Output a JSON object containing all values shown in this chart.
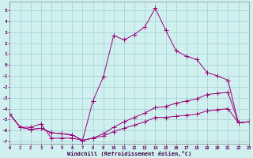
{
  "xlabel": "Windchill (Refroidissement éolien,°C)",
  "background_color": "#d0f0f0",
  "grid_color": "#a0d0d0",
  "line_color": "#990077",
  "xlim": [
    0,
    23
  ],
  "ylim": [
    -7.2,
    5.8
  ],
  "xticks": [
    0,
    1,
    2,
    3,
    4,
    5,
    6,
    7,
    8,
    9,
    10,
    11,
    12,
    13,
    14,
    15,
    16,
    17,
    18,
    19,
    20,
    21,
    22,
    23
  ],
  "yticks": [
    -7,
    -6,
    -5,
    -4,
    -3,
    -2,
    -1,
    0,
    1,
    2,
    3,
    4,
    5
  ],
  "line1_x": [
    0,
    1,
    2,
    3,
    4,
    5,
    6,
    7,
    8,
    9,
    10,
    11,
    12,
    13,
    14,
    15,
    16,
    17,
    18,
    19,
    20,
    21,
    22,
    23
  ],
  "line1_y": [
    -4.5,
    -5.7,
    -5.7,
    -5.4,
    -6.7,
    -6.7,
    -6.7,
    -6.9,
    -3.3,
    -1.1,
    2.7,
    2.3,
    2.8,
    3.5,
    5.2,
    3.2,
    1.3,
    0.8,
    0.5,
    -0.7,
    -1.0,
    -1.4,
    -5.3,
    -5.2
  ],
  "line2_x": [
    0,
    1,
    2,
    3,
    4,
    5,
    6,
    7,
    8,
    9,
    10,
    11,
    12,
    13,
    14,
    15,
    16,
    17,
    18,
    19,
    20,
    21,
    22,
    23
  ],
  "line2_y": [
    -4.5,
    -5.7,
    -5.9,
    -5.8,
    -6.2,
    -6.3,
    -6.4,
    -6.9,
    -6.7,
    -6.5,
    -6.1,
    -5.8,
    -5.5,
    -5.2,
    -4.8,
    -4.8,
    -4.7,
    -4.6,
    -4.5,
    -4.2,
    -4.1,
    -4.0,
    -5.3,
    -5.2
  ],
  "line3_x": [
    0,
    1,
    2,
    3,
    4,
    5,
    6,
    7,
    8,
    9,
    10,
    11,
    12,
    13,
    14,
    15,
    16,
    17,
    18,
    19,
    20,
    21,
    22,
    23
  ],
  "line3_y": [
    -4.5,
    -5.7,
    -5.9,
    -5.8,
    -6.2,
    -6.3,
    -6.4,
    -6.9,
    -6.7,
    -6.3,
    -5.7,
    -5.2,
    -4.8,
    -4.4,
    -3.9,
    -3.8,
    -3.5,
    -3.3,
    -3.1,
    -2.7,
    -2.6,
    -2.5,
    -5.3,
    -5.2
  ],
  "markersize": 2.0,
  "linewidth": 0.7
}
